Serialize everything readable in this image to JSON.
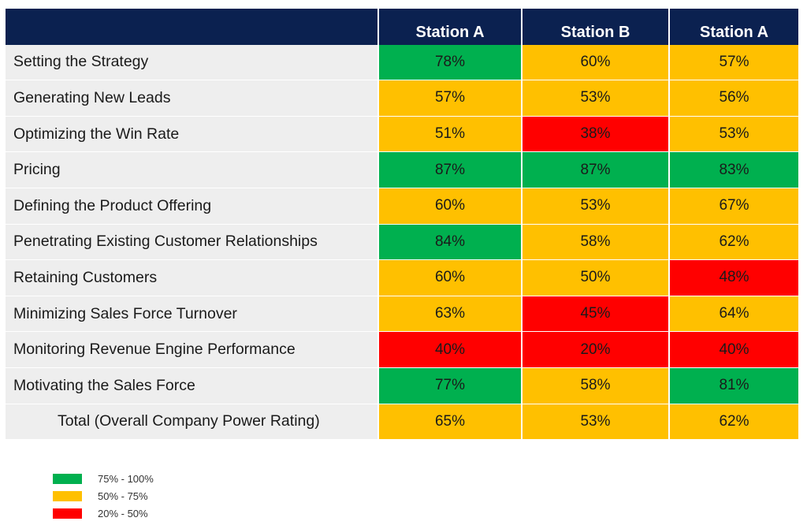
{
  "chart_data": {
    "type": "table",
    "columns": [
      "Station A",
      "Station B",
      "Station A"
    ],
    "rows": [
      {
        "label": "Setting the Strategy",
        "values": [
          "78%",
          "60%",
          "57%"
        ],
        "bands": [
          "high",
          "mid",
          "mid"
        ]
      },
      {
        "label": "Generating New Leads",
        "values": [
          "57%",
          "53%",
          "56%"
        ],
        "bands": [
          "mid",
          "mid",
          "mid"
        ]
      },
      {
        "label": "Optimizing the Win Rate",
        "values": [
          "51%",
          "38%",
          "53%"
        ],
        "bands": [
          "mid",
          "low",
          "mid"
        ]
      },
      {
        "label": "Pricing",
        "values": [
          "87%",
          "87%",
          "83%"
        ],
        "bands": [
          "high",
          "high",
          "high"
        ]
      },
      {
        "label": "Defining the Product Offering",
        "values": [
          "60%",
          "53%",
          "67%"
        ],
        "bands": [
          "mid",
          "mid",
          "mid"
        ]
      },
      {
        "label": "Penetrating Existing Customer Relationships",
        "values": [
          "84%",
          "58%",
          "62%"
        ],
        "bands": [
          "high",
          "mid",
          "mid"
        ]
      },
      {
        "label": "Retaining Customers",
        "values": [
          "60%",
          "50%",
          "48%"
        ],
        "bands": [
          "mid",
          "mid",
          "low"
        ]
      },
      {
        "label": "Minimizing Sales Force Turnover",
        "values": [
          "63%",
          "45%",
          "64%"
        ],
        "bands": [
          "mid",
          "low",
          "mid"
        ]
      },
      {
        "label": "Monitoring Revenue Engine Performance",
        "values": [
          "40%",
          "20%",
          "40%"
        ],
        "bands": [
          "low",
          "low",
          "low"
        ]
      },
      {
        "label": "Motivating the Sales Force",
        "values": [
          "77%",
          "58%",
          "81%"
        ],
        "bands": [
          "high",
          "mid",
          "high"
        ]
      },
      {
        "label": "Total (Overall Company Power Rating)",
        "values": [
          "65%",
          "53%",
          "62%"
        ],
        "bands": [
          "mid",
          "mid",
          "mid"
        ],
        "total": true
      }
    ],
    "legend": [
      {
        "band": "high",
        "label": "75% - 100%",
        "color": "#00b04f"
      },
      {
        "band": "mid",
        "label": "50% - 75%",
        "color": "#ffc000"
      },
      {
        "band": "low",
        "label": "20% - 50%",
        "color": "#ff0000"
      }
    ]
  },
  "colors": {
    "header_bg": "#0b2150",
    "label_bg": "#eeeeee"
  }
}
